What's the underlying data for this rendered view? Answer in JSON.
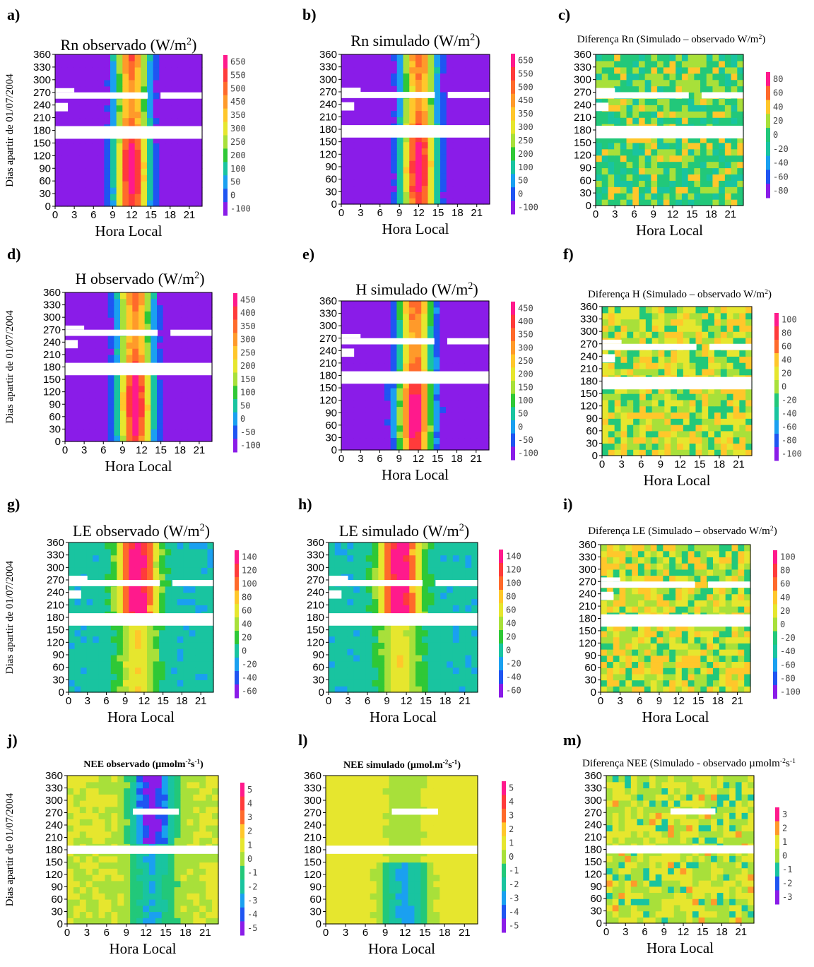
{
  "chart_data": [
    {
      "id": "a",
      "letter": "a)",
      "type": "heatmap",
      "title": "Rn observado (W/m",
      "title_sup": "2",
      "title_end": ")",
      "title_style": "large",
      "xlabel": "Hora Local",
      "ylabel": "Dias apartir de 01/07/2004",
      "xticks": [
        "0",
        "3",
        "6",
        "9",
        "12",
        "15",
        "18",
        "21"
      ],
      "xlim": [
        0,
        23
      ],
      "yticks": [
        "0",
        "30",
        "60",
        "90",
        "120",
        "150",
        "180",
        "210",
        "240",
        "270",
        "300",
        "330",
        "360"
      ],
      "ylim": [
        0,
        360
      ],
      "colorbar": [
        "650",
        "550",
        "500",
        "450",
        "350",
        "300",
        "250",
        "200",
        "100",
        "50",
        "0",
        "-100"
      ],
      "colors": [
        "#ff1a8c",
        "#ff3b3b",
        "#ff6a2b",
        "#ff9a2a",
        "#ffc72b",
        "#e6e62e",
        "#a8e03a",
        "#2fc836",
        "#19c4a0",
        "#1aa0f0",
        "#1f55f2",
        "#8a1ce8"
      ]
    },
    {
      "id": "b",
      "letter": "b)",
      "type": "heatmap",
      "title": "Rn simulado (W/m",
      "title_sup": "2",
      "title_end": ")",
      "title_style": "large",
      "xlabel": "Hora Local",
      "ylabel": "",
      "xticks": [
        "0",
        "3",
        "6",
        "9",
        "12",
        "15",
        "18",
        "21"
      ],
      "xlim": [
        0,
        23
      ],
      "yticks": [
        "0",
        "30",
        "60",
        "90",
        "120",
        "150",
        "180",
        "210",
        "240",
        "270",
        "300",
        "330",
        "360"
      ],
      "ylim": [
        0,
        360
      ],
      "colorbar": [
        "650",
        "550",
        "500",
        "450",
        "350",
        "300",
        "250",
        "200",
        "100",
        "50",
        "0",
        "-100"
      ],
      "colors": [
        "#ff1a8c",
        "#ff3b3b",
        "#ff6a2b",
        "#ff9a2a",
        "#ffc72b",
        "#e6e62e",
        "#a8e03a",
        "#2fc836",
        "#19c4a0",
        "#1aa0f0",
        "#1f55f2",
        "#8a1ce8"
      ]
    },
    {
      "id": "c",
      "letter": "c)",
      "type": "heatmap",
      "title": "Diferença Rn (Simulado – observado W/m",
      "title_sup": "2",
      "title_end": ")",
      "title_style": "small",
      "xlabel": "Hora Local",
      "ylabel": "",
      "xticks": [
        "0",
        "3",
        "6",
        "9",
        "12",
        "15",
        "18",
        "21"
      ],
      "xlim": [
        0,
        23
      ],
      "yticks": [
        "0",
        "30",
        "60",
        "90",
        "120",
        "150",
        "180",
        "210",
        "240",
        "270",
        "300",
        "330",
        "360"
      ],
      "ylim": [
        0,
        360
      ],
      "colorbar": [
        "80",
        "60",
        "40",
        "20",
        "0",
        "-20",
        "-40",
        "-60",
        "-80"
      ],
      "colors": [
        "#ff1a8c",
        "#ff6a2b",
        "#ffc72b",
        "#a8e03a",
        "#22c87a",
        "#19c4a0",
        "#1aa0f0",
        "#1f55f2",
        "#8a1ce8"
      ]
    },
    {
      "id": "d",
      "letter": "d)",
      "type": "heatmap",
      "title": "H observado (W/m",
      "title_sup": "2",
      "title_end": ")",
      "title_style": "large",
      "xlabel": "Hora Local",
      "ylabel": "Dias apartir de 01/07/2004",
      "xticks": [
        "0",
        "3",
        "6",
        "9",
        "12",
        "15",
        "18",
        "21"
      ],
      "xlim": [
        0,
        23
      ],
      "yticks": [
        "0",
        "30",
        "60",
        "90",
        "120",
        "150",
        "180",
        "210",
        "240",
        "270",
        "300",
        "330",
        "360"
      ],
      "ylim": [
        0,
        360
      ],
      "colorbar": [
        "450",
        "400",
        "350",
        "300",
        "250",
        "200",
        "150",
        "100",
        "50",
        "0",
        "-50",
        "-100"
      ],
      "colors": [
        "#ff1a8c",
        "#ff3b3b",
        "#ff6a2b",
        "#ff9a2a",
        "#ffc72b",
        "#e6e62e",
        "#a8e03a",
        "#2fc836",
        "#19c4a0",
        "#1aa0f0",
        "#1f55f2",
        "#8a1ce8"
      ]
    },
    {
      "id": "e",
      "letter": "e)",
      "type": "heatmap",
      "title": "H simulado (W/m",
      "title_sup": "2",
      "title_end": ")",
      "title_style": "large",
      "xlabel": "Hora Local",
      "ylabel": "",
      "xticks": [
        "0",
        "3",
        "6",
        "9",
        "12",
        "15",
        "18",
        "21"
      ],
      "xlim": [
        0,
        23
      ],
      "yticks": [
        "0",
        "30",
        "60",
        "90",
        "120",
        "150",
        "180",
        "210",
        "240",
        "270",
        "300",
        "330",
        "360"
      ],
      "ylim": [
        0,
        360
      ],
      "colorbar": [
        "450",
        "400",
        "350",
        "300",
        "250",
        "200",
        "150",
        "100",
        "50",
        "0",
        "-50",
        "-100"
      ],
      "colors": [
        "#ff1a8c",
        "#ff3b3b",
        "#ff6a2b",
        "#ff9a2a",
        "#ffc72b",
        "#e6e62e",
        "#a8e03a",
        "#2fc836",
        "#19c4a0",
        "#1aa0f0",
        "#1f55f2",
        "#8a1ce8"
      ]
    },
    {
      "id": "f",
      "letter": "f)",
      "type": "heatmap",
      "title": "Diferença H (Simulado – observado W/m",
      "title_sup": "2",
      "title_end": ")",
      "title_style": "small",
      "xlabel": "Hora Local",
      "ylabel": "",
      "xticks": [
        "0",
        "3",
        "6",
        "9",
        "12",
        "15",
        "18",
        "21"
      ],
      "xlim": [
        0,
        23
      ],
      "yticks": [
        "0",
        "30",
        "60",
        "90",
        "120",
        "150",
        "180",
        "210",
        "240",
        "270",
        "300",
        "330",
        "360"
      ],
      "ylim": [
        0,
        360
      ],
      "colorbar": [
        "100",
        "80",
        "60",
        "40",
        "20",
        "0",
        "-20",
        "-40",
        "-60",
        "-80",
        "-100"
      ],
      "colors": [
        "#ff1a8c",
        "#ff3b3b",
        "#ff6a2b",
        "#ffc72b",
        "#e6e62e",
        "#a8e03a",
        "#22c87a",
        "#19c4a0",
        "#1aa0f0",
        "#1f55f2",
        "#8a1ce8"
      ]
    },
    {
      "id": "g",
      "letter": "g)",
      "type": "heatmap",
      "title": "LE observado (W/m",
      "title_sup": "2",
      "title_end": ")",
      "title_style": "large",
      "xlabel": "Hora Local",
      "ylabel": "Dias apartir de 01/07/2004",
      "xticks": [
        "0",
        "3",
        "6",
        "9",
        "12",
        "15",
        "18",
        "21"
      ],
      "xlim": [
        0,
        23
      ],
      "yticks": [
        "0",
        "30",
        "60",
        "90",
        "120",
        "150",
        "180",
        "210",
        "240",
        "270",
        "300",
        "330",
        "360"
      ],
      "ylim": [
        0,
        360
      ],
      "colorbar": [
        "140",
        "120",
        "100",
        "80",
        "60",
        "40",
        "20",
        "0",
        "-20",
        "-40",
        "-60"
      ],
      "colors": [
        "#ff1a8c",
        "#ff3b3b",
        "#ff6a2b",
        "#ffc72b",
        "#e6e62e",
        "#a8e03a",
        "#2fc836",
        "#19c4a0",
        "#1aa0f0",
        "#1f55f2",
        "#8a1ce8"
      ]
    },
    {
      "id": "h",
      "letter": "h)",
      "type": "heatmap",
      "title": "LE simulado (W/m",
      "title_sup": "2",
      "title_end": ")",
      "title_style": "large",
      "xlabel": "Hora Local",
      "ylabel": "",
      "xticks": [
        "0",
        "3",
        "6",
        "9",
        "12",
        "15",
        "18",
        "21"
      ],
      "xlim": [
        0,
        23
      ],
      "yticks": [
        "0",
        "30",
        "60",
        "90",
        "120",
        "150",
        "180",
        "210",
        "240",
        "270",
        "300",
        "330",
        "360"
      ],
      "ylim": [
        0,
        360
      ],
      "colorbar": [
        "140",
        "120",
        "100",
        "80",
        "60",
        "40",
        "20",
        "0",
        "-20",
        "-40",
        "-60"
      ],
      "colors": [
        "#ff1a8c",
        "#ff3b3b",
        "#ff6a2b",
        "#ffc72b",
        "#e6e62e",
        "#a8e03a",
        "#2fc836",
        "#19c4a0",
        "#1aa0f0",
        "#1f55f2",
        "#8a1ce8"
      ]
    },
    {
      "id": "i",
      "letter": "i)",
      "type": "heatmap",
      "title": "Diferença LE (Simulado – observado W/m",
      "title_sup": "2",
      "title_end": ")",
      "title_style": "small",
      "xlabel": "Hora Local",
      "ylabel": "",
      "xticks": [
        "0",
        "3",
        "6",
        "9",
        "12",
        "15",
        "18",
        "21"
      ],
      "xlim": [
        0,
        23
      ],
      "yticks": [
        "0",
        "30",
        "60",
        "90",
        "120",
        "150",
        "180",
        "210",
        "240",
        "270",
        "300",
        "330",
        "360"
      ],
      "ylim": [
        0,
        360
      ],
      "colorbar": [
        "100",
        "80",
        "60",
        "40",
        "20",
        "0",
        "-20",
        "-40",
        "-60",
        "-80",
        "-100"
      ],
      "colors": [
        "#ff1a8c",
        "#ff3b3b",
        "#ff6a2b",
        "#ffc72b",
        "#e6e62e",
        "#a8e03a",
        "#22c87a",
        "#19c4a0",
        "#1aa0f0",
        "#1f55f2",
        "#8a1ce8"
      ]
    },
    {
      "id": "j",
      "letter": "j)",
      "type": "heatmap",
      "title": "NEE observado (µmolm",
      "title_sup": "-2",
      "title_mid": "s",
      "title_sup2": "-1",
      "title_end": ")",
      "title_style": "bold",
      "xlabel": "Hora Local",
      "ylabel": "Dias apartir de 01/07/2004",
      "xticks": [
        "0",
        "3",
        "6",
        "9",
        "12",
        "15",
        "18",
        "21"
      ],
      "xlim": [
        0,
        23
      ],
      "yticks": [
        "0",
        "30",
        "60",
        "90",
        "120",
        "150",
        "180",
        "210",
        "240",
        "270",
        "300",
        "330",
        "360"
      ],
      "ylim": [
        0,
        360
      ],
      "colorbar": [
        "5",
        "4",
        "3",
        "2",
        "1",
        "0",
        "-1",
        "-2",
        "-3",
        "-4",
        "-5"
      ],
      "colors": [
        "#ff1a8c",
        "#ff3b3b",
        "#ff6a2b",
        "#ffc72b",
        "#e6e62e",
        "#a8e03a",
        "#22c87a",
        "#19c4a0",
        "#1aa0f0",
        "#1f55f2",
        "#8a1ce8"
      ]
    },
    {
      "id": "l",
      "letter": "l)",
      "type": "heatmap",
      "title": "NEE simulado (µmol.m",
      "title_sup": "-2",
      "title_mid": "s",
      "title_sup2": "-1",
      "title_end": ")",
      "title_style": "bold",
      "xlabel": "Hora Local",
      "ylabel": "",
      "xticks": [
        "0",
        "3",
        "6",
        "9",
        "12",
        "15",
        "18",
        "21"
      ],
      "xlim": [
        0,
        23
      ],
      "yticks": [
        "0",
        "30",
        "60",
        "90",
        "120",
        "150",
        "180",
        "210",
        "240",
        "270",
        "300",
        "330",
        "360"
      ],
      "ylim": [
        0,
        360
      ],
      "colorbar": [
        "5",
        "4",
        "3",
        "2",
        "1",
        "0",
        "-1",
        "-2",
        "-3",
        "-4",
        "-5"
      ],
      "colors": [
        "#ff1a8c",
        "#ff3b3b",
        "#ff6a2b",
        "#ffc72b",
        "#e6e62e",
        "#a8e03a",
        "#22c87a",
        "#19c4a0",
        "#1aa0f0",
        "#1f55f2",
        "#8a1ce8"
      ]
    },
    {
      "id": "m",
      "letter": "m)",
      "type": "heatmap",
      "title": "Diferença NEE (Simulado - observado µmolm",
      "title_sup": "-2",
      "title_mid": "s",
      "title_sup2": "-1",
      "title_end": "",
      "title_style": "small",
      "xlabel": "Hora Local",
      "ylabel": "",
      "xticks": [
        "0",
        "3",
        "6",
        "9",
        "12",
        "15",
        "18",
        "21"
      ],
      "xlim": [
        0,
        23
      ],
      "yticks": [
        "0",
        "30",
        "60",
        "90",
        "120",
        "150",
        "180",
        "210",
        "240",
        "270",
        "300",
        "330",
        "360"
      ],
      "ylim": [
        0,
        360
      ],
      "colorbar": [
        "3",
        "2",
        "1",
        "0",
        "-1",
        "-2",
        "-3"
      ],
      "colors": [
        "#ff1a8c",
        "#ff9a2a",
        "#e6e62e",
        "#a8e03a",
        "#19c4a0",
        "#1f55f2",
        "#8a1ce8"
      ]
    }
  ]
}
